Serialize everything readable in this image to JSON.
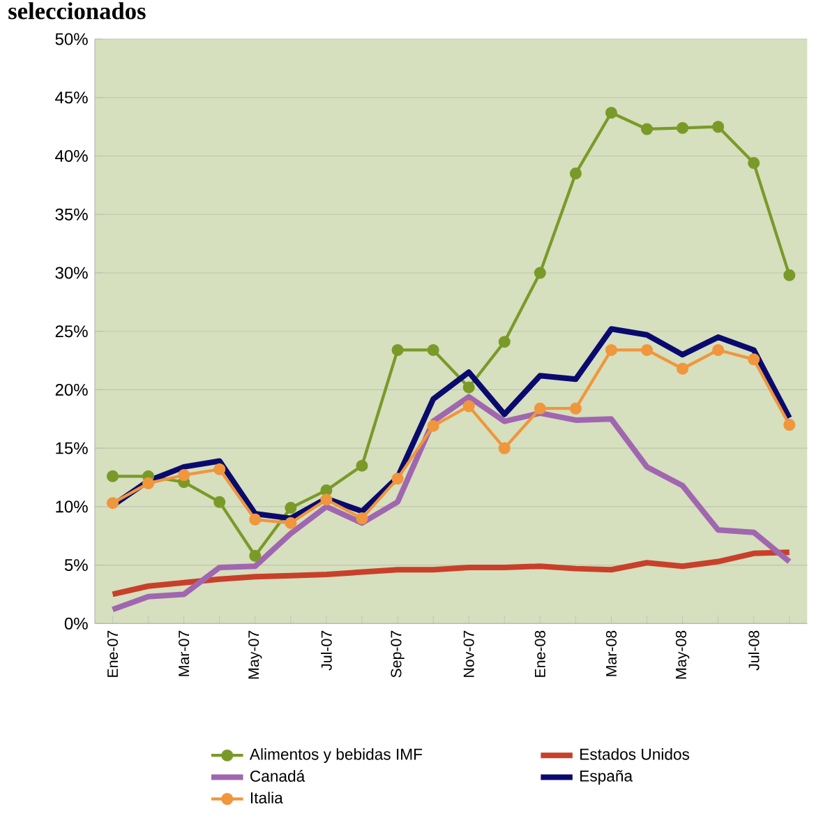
{
  "chart_data": {
    "type": "line",
    "title": "seleccionados",
    "categories": [
      "Ene-07",
      null,
      "Mar-07",
      null,
      "May-07",
      null,
      "Jul-07",
      null,
      "Sep-07",
      null,
      "Nov-07",
      null,
      "Ene-08",
      null,
      "Mar-08",
      null,
      "May-08",
      null,
      "Jul-08",
      null
    ],
    "series": [
      {
        "name": "Alimentos y bebidas IMF",
        "color": "#7a9a28",
        "marker": "circle",
        "values": [
          12.6,
          12.6,
          12.1,
          10.4,
          5.8,
          9.9,
          11.4,
          13.5,
          23.4,
          23.4,
          20.2,
          24.1,
          30.0,
          38.5,
          43.7,
          42.3,
          42.4,
          42.5,
          39.4,
          29.8
        ]
      },
      {
        "name": "Estados Unidos",
        "color": "#c8402a",
        "marker": "none",
        "values": [
          2.5,
          3.2,
          3.5,
          3.8,
          4.0,
          4.1,
          4.2,
          4.4,
          4.6,
          4.6,
          4.8,
          4.8,
          4.9,
          4.7,
          4.6,
          5.2,
          4.9,
          5.3,
          6.0,
          6.1
        ]
      },
      {
        "name": "Canadá",
        "color": "#a066b0",
        "marker": "none",
        "values": [
          1.2,
          2.3,
          2.5,
          4.8,
          4.9,
          7.7,
          10.0,
          8.6,
          10.4,
          17.3,
          19.4,
          17.3,
          18.0,
          17.4,
          17.5,
          13.4,
          11.8,
          8.0,
          7.8,
          5.3
        ]
      },
      {
        "name": "España",
        "color": "#0a0a6e",
        "marker": "none",
        "values": [
          10.1,
          12.2,
          13.4,
          13.9,
          9.4,
          9.0,
          10.7,
          9.6,
          12.5,
          19.2,
          21.5,
          17.9,
          21.2,
          20.9,
          25.2,
          24.7,
          23.0,
          24.5,
          23.4,
          17.6
        ]
      },
      {
        "name": "Italia",
        "color": "#f0963c",
        "marker": "circle",
        "values": [
          10.3,
          12.0,
          12.7,
          13.2,
          8.9,
          8.6,
          10.6,
          9.0,
          12.4,
          16.9,
          18.6,
          15.0,
          18.4,
          18.4,
          23.4,
          23.4,
          21.8,
          23.4,
          22.6,
          17.0
        ]
      }
    ],
    "ylim": [
      0,
      50
    ],
    "yticks": [
      {
        "value": 0,
        "label": "0%"
      },
      {
        "value": 5,
        "label": "5%"
      },
      {
        "value": 10,
        "label": "10%"
      },
      {
        "value": 15,
        "label": "15%"
      },
      {
        "value": 20,
        "label": "20%"
      },
      {
        "value": 25,
        "label": "25%"
      },
      {
        "value": 30,
        "label": "30%"
      },
      {
        "value": 35,
        "label": "35%"
      },
      {
        "value": 40,
        "label": "40%"
      },
      {
        "value": 45,
        "label": "45%"
      },
      {
        "value": 50,
        "label": "50%"
      }
    ],
    "grid": "y",
    "legend": "bottom"
  }
}
